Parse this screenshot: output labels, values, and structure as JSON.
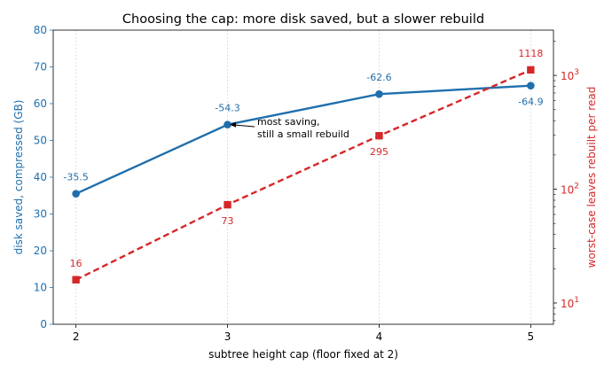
{
  "chart_data": {
    "type": "line",
    "title": "Choosing the cap: more disk saved, but a slower rebuild",
    "xlabel": "subtree height cap (floor fixed at 2)",
    "x": [
      2,
      3,
      4,
      5
    ],
    "x_ticks": [
      "2",
      "3",
      "4",
      "5"
    ],
    "y_left": {
      "label": "disk saved, compressed (GB)",
      "lim": [
        0,
        80
      ],
      "ticks": [
        "0",
        "10",
        "20",
        "30",
        "40",
        "50",
        "60",
        "70",
        "80"
      ],
      "color": "#1f6fad"
    },
    "y_right": {
      "label": "worst-case leaves rebuilt per read",
      "scale": "log",
      "lim": [
        6.5,
        2500
      ],
      "ticks": [
        {
          "value": 10,
          "base": "10",
          "exp": "1"
        },
        {
          "value": 100,
          "base": "10",
          "exp": "2"
        },
        {
          "value": 1000,
          "base": "10",
          "exp": "3"
        }
      ],
      "color": "#d62728"
    },
    "series": [
      {
        "axis": "left",
        "style": "solid",
        "marker": "circle",
        "color": "#1f6fad",
        "values": [
          35.5,
          54.3,
          62.6,
          64.9
        ],
        "labels": [
          "-35.5",
          "-54.3",
          "-62.6",
          "-64.9"
        ]
      },
      {
        "axis": "right",
        "style": "dashed",
        "marker": "square",
        "color": "#d62728",
        "values": [
          16,
          73,
          295,
          1118
        ],
        "labels": [
          "16",
          "73",
          "295",
          "1118"
        ]
      }
    ],
    "annotation": {
      "lines": [
        "most saving,",
        "still a small rebuild"
      ],
      "x": 3,
      "y": 54.3
    },
    "grid": "vertical dotted at x ticks"
  }
}
